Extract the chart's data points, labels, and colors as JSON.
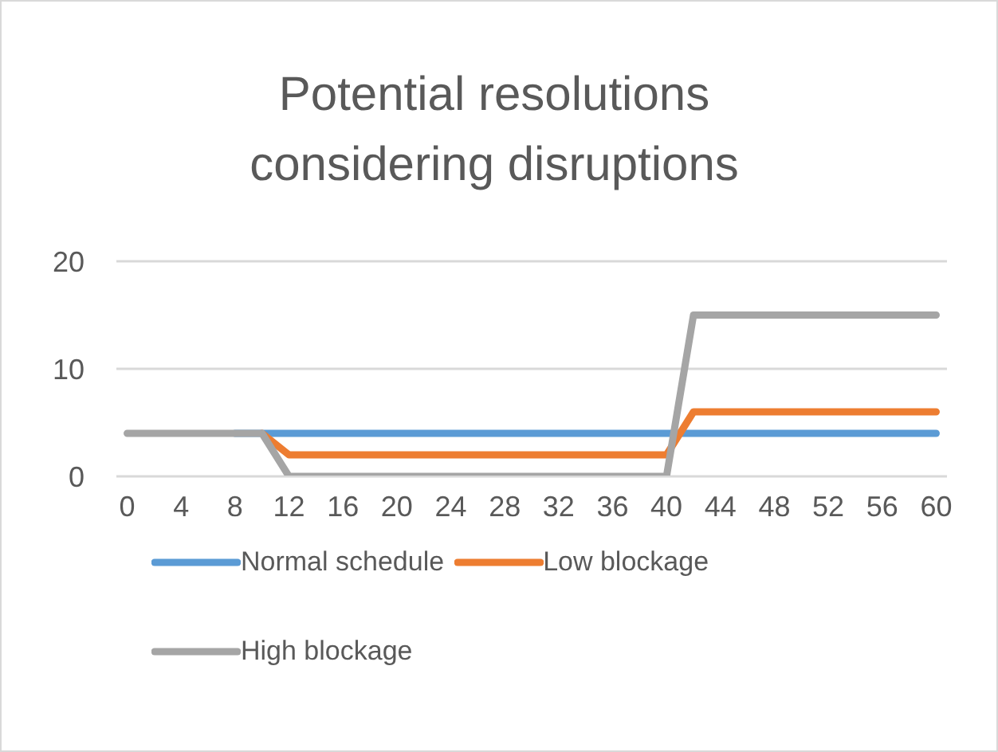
{
  "chart_data": {
    "type": "line",
    "title": "Potential resolutions considering disruptions",
    "x": [
      0,
      2,
      4,
      6,
      8,
      10,
      12,
      14,
      16,
      18,
      20,
      22,
      24,
      26,
      28,
      30,
      32,
      34,
      36,
      38,
      40,
      42,
      44,
      46,
      48,
      50,
      52,
      54,
      56,
      58,
      60
    ],
    "series": [
      {
        "name": "Normal schedule",
        "color": "#5b9bd5",
        "values": [
          null,
          null,
          null,
          null,
          4,
          4,
          4,
          4,
          4,
          4,
          4,
          4,
          4,
          4,
          4,
          4,
          4,
          4,
          4,
          4,
          4,
          4,
          4,
          4,
          4,
          4,
          4,
          4,
          4,
          4,
          4
        ]
      },
      {
        "name": "Low blockage",
        "color": "#ed7d31",
        "values": [
          null,
          null,
          null,
          null,
          null,
          4,
          2,
          2,
          2,
          2,
          2,
          2,
          2,
          2,
          2,
          2,
          2,
          2,
          2,
          2,
          2,
          6,
          6,
          6,
          6,
          6,
          6,
          6,
          6,
          6,
          6
        ]
      },
      {
        "name": "High blockage",
        "color": "#a5a5a5",
        "values": [
          4,
          4,
          4,
          4,
          4,
          4,
          0,
          0,
          0,
          0,
          0,
          0,
          0,
          0,
          0,
          0,
          0,
          0,
          0,
          0,
          0,
          15,
          15,
          15,
          15,
          15,
          15,
          15,
          15,
          15,
          15
        ]
      }
    ],
    "xlim": [
      -0.8,
      60.8
    ],
    "xticks": [
      0,
      4,
      8,
      12,
      16,
      20,
      24,
      28,
      32,
      36,
      40,
      44,
      48,
      52,
      56,
      60
    ],
    "ylim": [
      0,
      20
    ],
    "yticks": [
      0,
      10,
      20
    ],
    "grid": "y",
    "legend": "bottom",
    "marker": "none",
    "line_style": "solid"
  }
}
